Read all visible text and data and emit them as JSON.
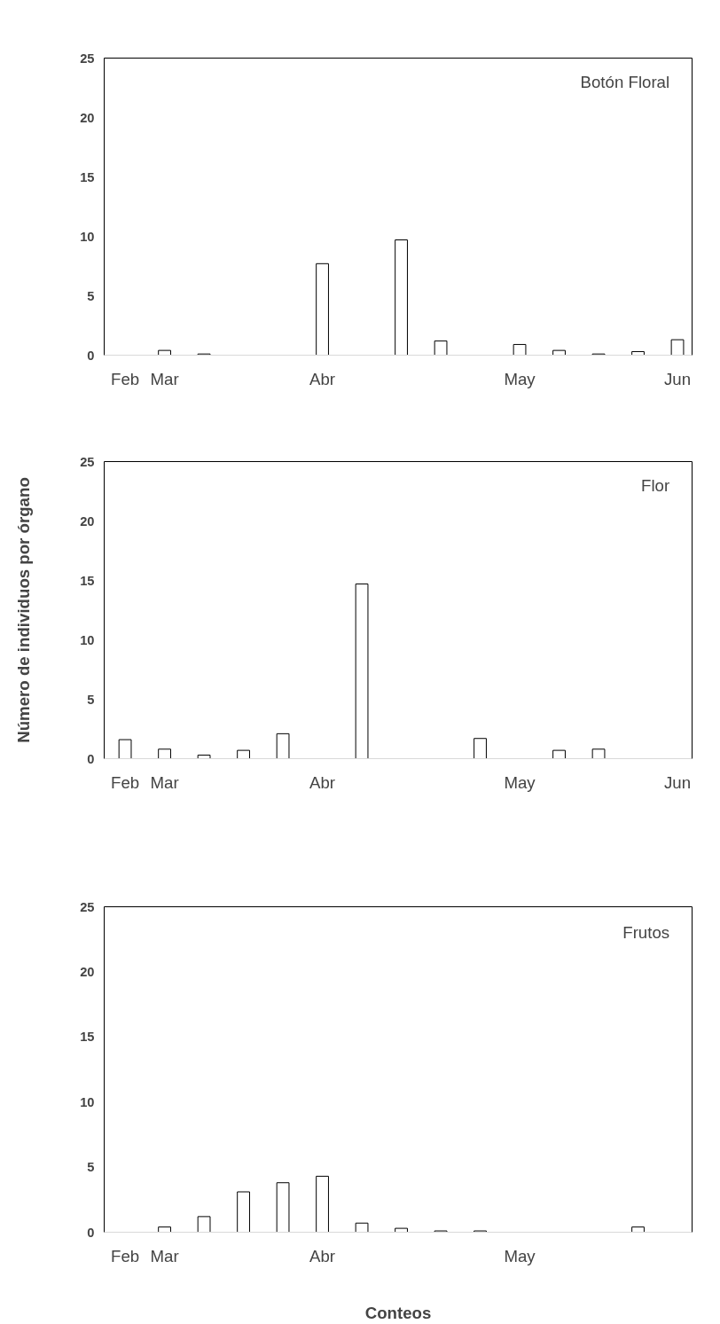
{
  "chart_data": [
    {
      "type": "bar",
      "title": "Botón Floral",
      "categories": [
        "Feb",
        "Mar",
        null,
        null,
        null,
        "Abr",
        null,
        null,
        null,
        null,
        "May",
        null,
        null,
        null,
        "Jun"
      ],
      "values": [
        null,
        0.4,
        0.1,
        null,
        null,
        7.7,
        null,
        9.7,
        1.2,
        null,
        0.9,
        0.4,
        0.1,
        0.3,
        1.3
      ],
      "color": "#ffffff",
      "ylim": [
        0,
        25
      ],
      "yticks": [
        0,
        5,
        10,
        15,
        20,
        25
      ],
      "grid": false
    },
    {
      "type": "bar",
      "title": "Flor",
      "ylabel": "Número de individuos por órgano",
      "categories": [
        "Feb",
        "Mar",
        null,
        null,
        null,
        "Abr",
        null,
        null,
        null,
        null,
        "May",
        null,
        null,
        null,
        "Jun"
      ],
      "values": [
        1.6,
        0.8,
        0.3,
        0.7,
        2.1,
        null,
        14.7,
        null,
        null,
        1.7,
        null,
        0.7,
        0.8,
        null,
        null
      ],
      "color": "#ffffff",
      "ylim": [
        0,
        25
      ],
      "yticks": [
        0,
        5,
        10,
        15,
        20,
        25
      ],
      "grid": false
    },
    {
      "type": "bar",
      "title": "Frutos",
      "xlabel": "Conteos",
      "categories": [
        "Feb",
        "Mar",
        null,
        null,
        null,
        "Abr",
        null,
        null,
        null,
        null,
        "May",
        null,
        null,
        null,
        null
      ],
      "values": [
        null,
        0.4,
        1.2,
        3.1,
        3.8,
        4.3,
        0.7,
        0.3,
        0.1,
        0.1,
        null,
        null,
        null,
        0.4,
        null
      ],
      "color": "#ffffff",
      "ylim": [
        0,
        25
      ],
      "yticks": [
        0,
        5,
        10,
        15,
        20,
        25
      ],
      "grid": false
    }
  ]
}
